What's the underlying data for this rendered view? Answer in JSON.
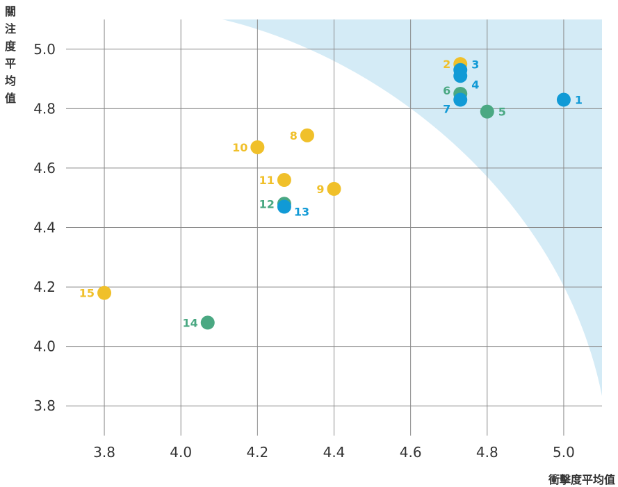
{
  "chart_data": {
    "type": "scatter",
    "title": "",
    "xlabel": "衝擊度平均值",
    "ylabel": "關注度平均值",
    "xlim": [
      3.7,
      5.1
    ],
    "ylim": [
      3.7,
      5.1
    ],
    "xticks": [
      "3.8",
      "4.0",
      "4.2",
      "4.4",
      "4.6",
      "4.8",
      "5.0"
    ],
    "yticks": [
      "3.8",
      "4.0",
      "4.2",
      "4.4",
      "4.6",
      "4.8",
      "5.0"
    ],
    "grid": true,
    "colors": {
      "yellow": "#f0c02a",
      "blue": "#119ad6",
      "green": "#4aa882",
      "region": "#d4ebf6"
    },
    "points": [
      {
        "label": "1",
        "x": 5.0,
        "y": 4.83,
        "color": "blue",
        "label_side": "right"
      },
      {
        "label": "2",
        "x": 4.73,
        "y": 4.95,
        "color": "yellow",
        "label_side": "left"
      },
      {
        "label": "3",
        "x": 4.73,
        "y": 4.93,
        "color": "blue",
        "label_side": "right"
      },
      {
        "label": "4",
        "x": 4.73,
        "y": 4.91,
        "color": "blue",
        "label_side": "right"
      },
      {
        "label": "5",
        "x": 4.8,
        "y": 4.79,
        "color": "green",
        "label_side": "right"
      },
      {
        "label": "6",
        "x": 4.73,
        "y": 4.85,
        "color": "green",
        "label_side": "left"
      },
      {
        "label": "7",
        "x": 4.73,
        "y": 4.83,
        "color": "blue",
        "label_side": "left"
      },
      {
        "label": "8",
        "x": 4.33,
        "y": 4.71,
        "color": "yellow",
        "label_side": "left"
      },
      {
        "label": "9",
        "x": 4.4,
        "y": 4.53,
        "color": "yellow",
        "label_side": "left"
      },
      {
        "label": "10",
        "x": 4.2,
        "y": 4.67,
        "color": "yellow",
        "label_side": "left"
      },
      {
        "label": "11",
        "x": 4.27,
        "y": 4.56,
        "color": "yellow",
        "label_side": "left"
      },
      {
        "label": "12",
        "x": 4.27,
        "y": 4.48,
        "color": "green",
        "label_side": "left"
      },
      {
        "label": "13",
        "x": 4.27,
        "y": 4.47,
        "color": "blue",
        "label_side": "right"
      },
      {
        "label": "14",
        "x": 4.07,
        "y": 4.08,
        "color": "green",
        "label_side": "left"
      },
      {
        "label": "15",
        "x": 3.8,
        "y": 4.18,
        "color": "yellow",
        "label_side": "left"
      }
    ]
  }
}
